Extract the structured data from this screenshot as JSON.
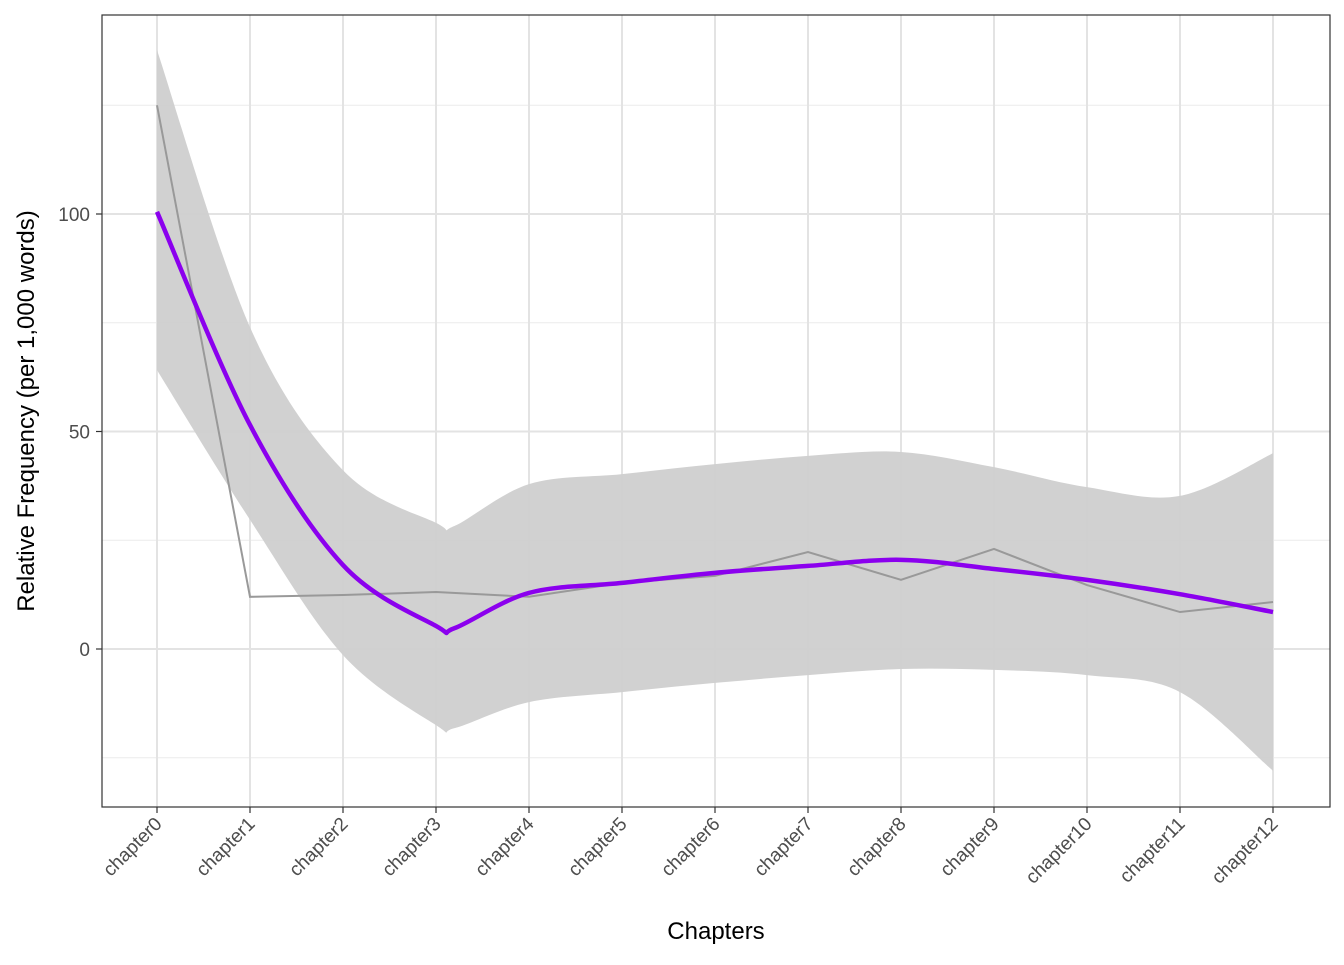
{
  "chart_data": {
    "type": "line",
    "title": "",
    "xlabel": "Chapters",
    "ylabel": "Relative Frequency (per 1,000 words)",
    "categories": [
      "chapter0",
      "chapter1",
      "chapter2",
      "chapter3",
      "chapter4",
      "chapter5",
      "chapter6",
      "chapter7",
      "chapter8",
      "chapter9",
      "chapter10",
      "chapter11",
      "chapter12"
    ],
    "ylim": [
      -36,
      146
    ],
    "yticks": [
      0,
      50,
      100
    ],
    "grid": true,
    "legend": "none",
    "series": [
      {
        "kind": "observed",
        "color": "#999999",
        "values": [
          125,
          12,
          12.4,
          13.1,
          12,
          15.2,
          16.8,
          22.3,
          15.9,
          23,
          14.7,
          8.5,
          10.8
        ]
      },
      {
        "kind": "smooth",
        "color": "#8B00EE",
        "x": [
          1,
          2,
          3,
          4,
          4.2,
          5,
          6,
          7,
          8,
          9,
          10,
          11,
          12,
          13
        ],
        "values": [
          100.5,
          51.5,
          19.3,
          5.3,
          4.8,
          12.9,
          15.2,
          17.5,
          19.1,
          20.5,
          18.4,
          15.9,
          12.6,
          8.5
        ],
        "ci_upper": [
          137.7,
          74,
          41.1,
          29,
          28.3,
          37.9,
          40.2,
          42.5,
          44.4,
          45.3,
          41.8,
          37.2,
          35.2,
          45
        ],
        "ci_lower": [
          64.1,
          29.7,
          -1.4,
          -17.5,
          -18.2,
          -12.2,
          -9.9,
          -7.8,
          -6,
          -4.6,
          -4.8,
          -6,
          -9.9,
          -28
        ],
        "ci_color": "#CFCFCF"
      }
    ]
  }
}
